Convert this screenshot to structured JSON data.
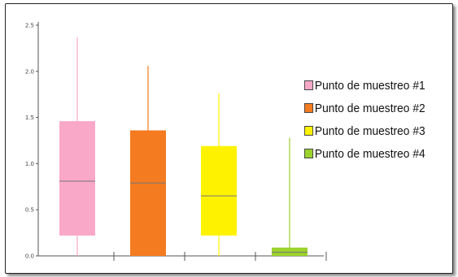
{
  "chart_data": {
    "type": "box",
    "title": "",
    "xlabel": "",
    "ylabel": "",
    "ylim": [
      0,
      2.5
    ],
    "yticks": [
      "0.0",
      "0.5",
      "1.0",
      "1.5",
      "2.0",
      "2.5"
    ],
    "grid": false,
    "legend_position": "right",
    "series": [
      {
        "name": "Punto de muestreo #1",
        "color": "#f9a8c8",
        "whisker_low": 0.0,
        "q1": 0.22,
        "median": 0.81,
        "q3": 1.46,
        "whisker_high": 2.37
      },
      {
        "name": "Punto de muestreo #2",
        "color": "#f47b20",
        "whisker_low": 0.0,
        "q1": 0.0,
        "median": 0.79,
        "q3": 1.36,
        "whisker_high": 2.06
      },
      {
        "name": "Punto de muestreo #3",
        "color": "#fff200",
        "whisker_low": 0.0,
        "q1": 0.22,
        "median": 0.65,
        "q3": 1.19,
        "whisker_high": 1.76
      },
      {
        "name": "Punto de muestreo #4",
        "color": "#9bd22b",
        "whisker_low": 0.0,
        "q1": 0.0,
        "median": 0.04,
        "q3": 0.09,
        "whisker_high": 1.28
      }
    ]
  }
}
